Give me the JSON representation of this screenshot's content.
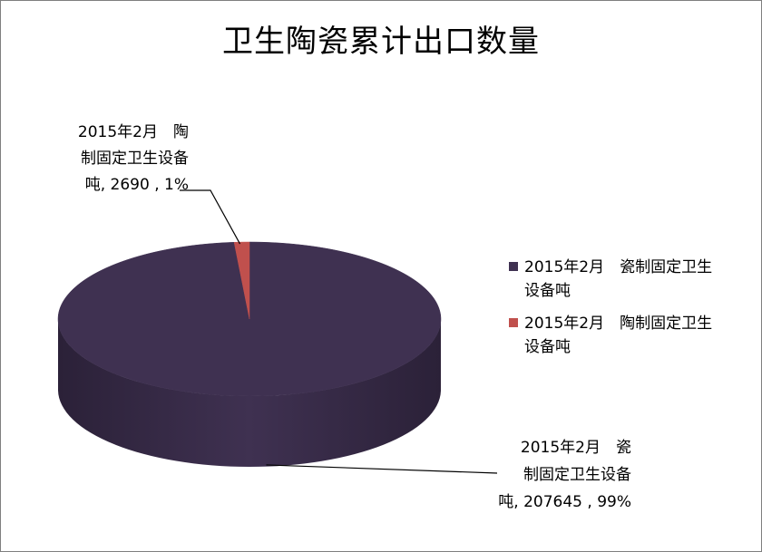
{
  "chart_data": {
    "type": "pie",
    "style": "3d",
    "title": "卫生陶瓷累计出口数量",
    "series": [
      {
        "name": "2015年2月　瓷制固定卫生设备吨",
        "legend_lines": [
          "2015年2月　瓷制固定卫生",
          "设备吨"
        ],
        "label_lines": [
          "2015年2月　瓷",
          "制固定卫生设备",
          "吨, 207645 , 99%"
        ],
        "value": 207645,
        "percent": "99%",
        "color": "#3f3151",
        "side_color": "#2b2138"
      },
      {
        "name": "2015年2月　陶制固定卫生设备吨",
        "legend_lines": [
          "2015年2月　陶制固定卫生",
          "设备吨"
        ],
        "label_lines": [
          "2015年2月　陶",
          "制固定卫生设备",
          "吨, 2690 , 1%"
        ],
        "value": 2690,
        "percent": "1%",
        "color": "#c0504d",
        "side_color": "#8c3a38"
      }
    ],
    "legend_position": "right"
  }
}
